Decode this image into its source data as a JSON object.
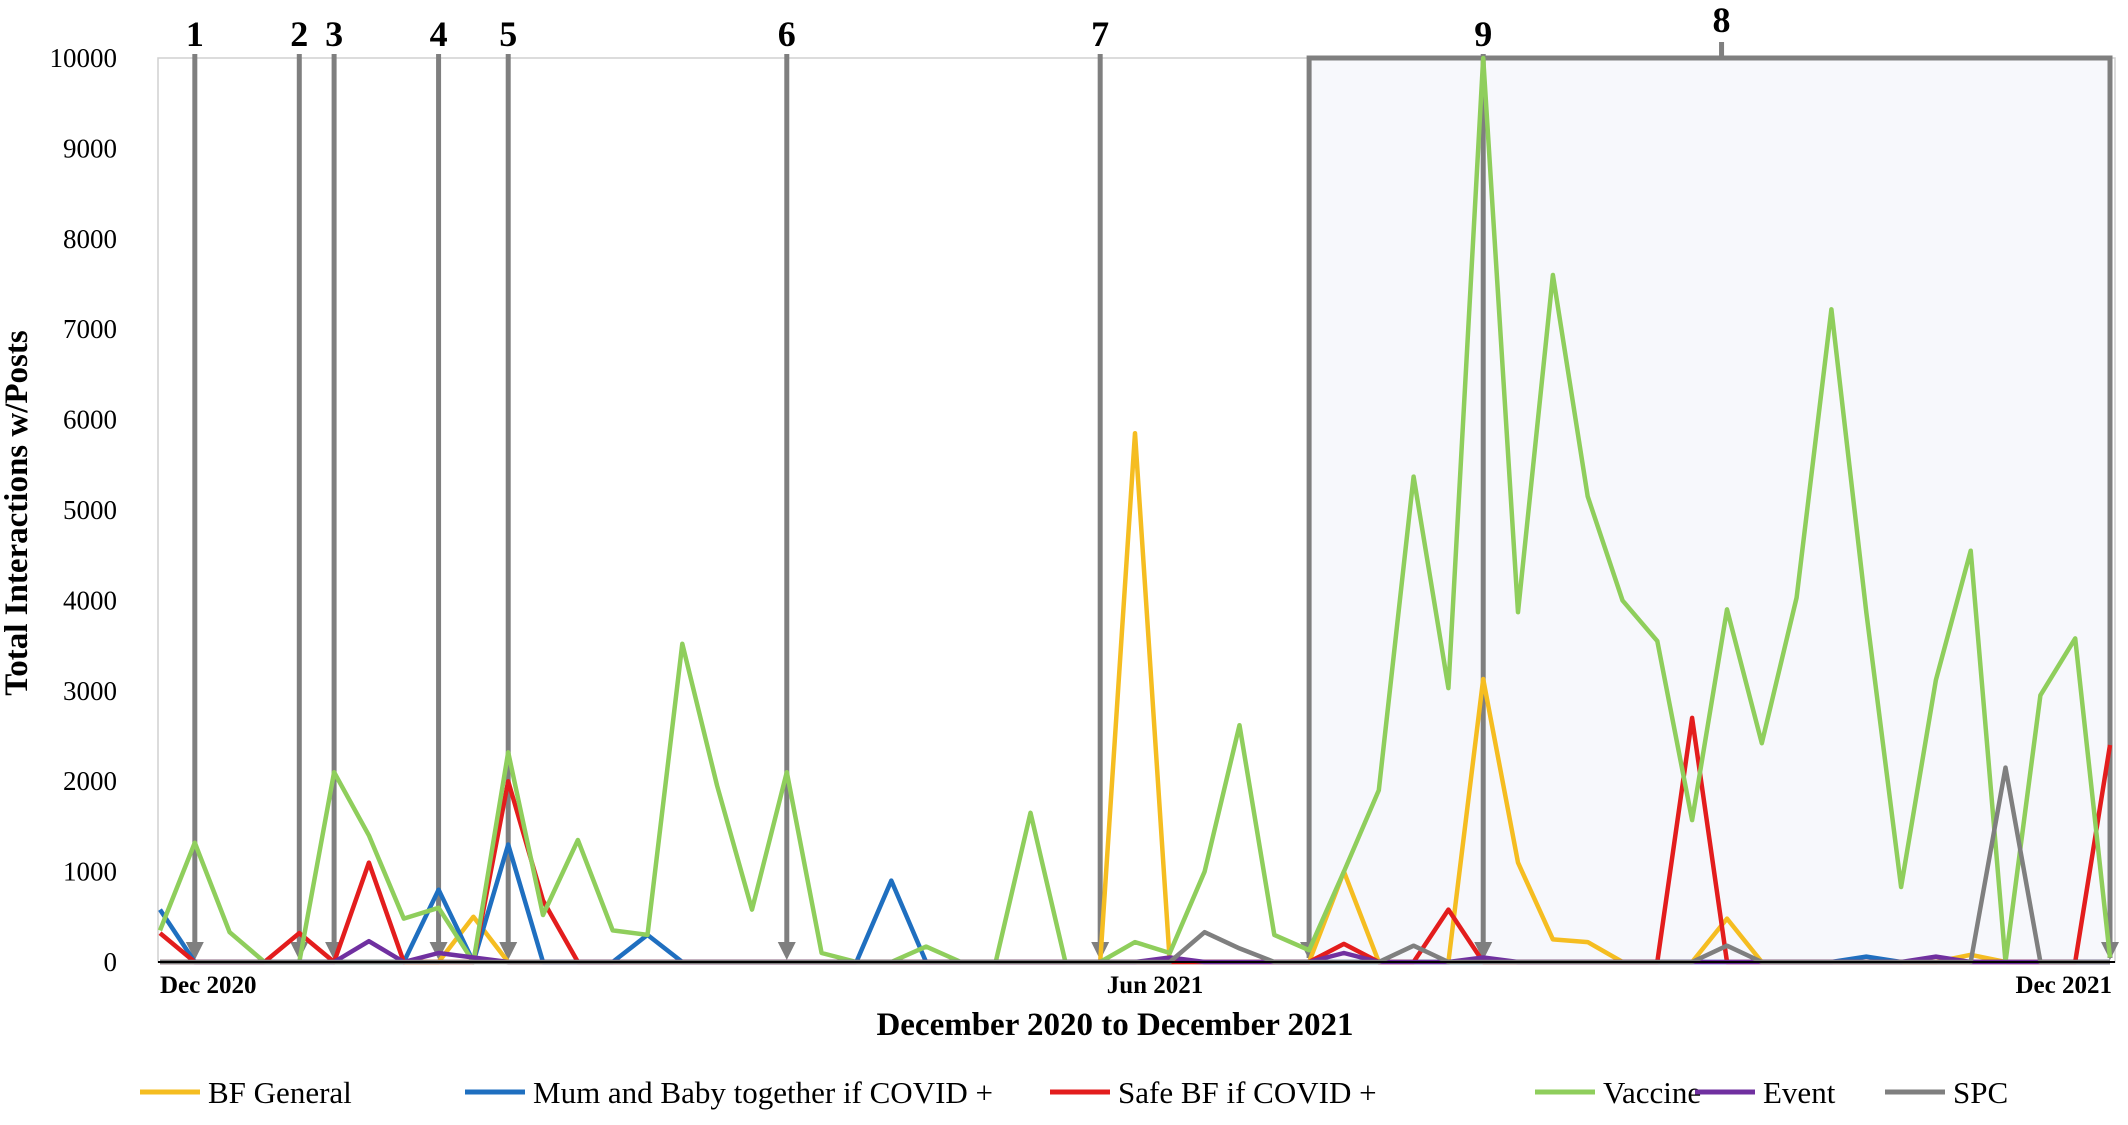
{
  "chart_data": {
    "type": "line",
    "title": "",
    "xlabel": "December 2020 to December 2021",
    "ylabel": "Total Interactions w/Posts",
    "ylim": [
      0,
      10000
    ],
    "yticks": [
      0,
      1000,
      2000,
      3000,
      4000,
      5000,
      6000,
      7000,
      8000,
      9000,
      10000
    ],
    "x_date_labels": [
      {
        "index": 1,
        "label": "Dec 2020"
      },
      {
        "index": 28,
        "label": "Jun 2021"
      },
      {
        "index": 56,
        "label": "Dec 2021"
      }
    ],
    "x_count": 57,
    "grid": false,
    "legend_position": "bottom",
    "series": [
      {
        "name": "BF General",
        "color": "#f5bd21",
        "values": [
          0,
          0,
          0,
          0,
          0,
          0,
          0,
          0,
          0,
          500,
          0,
          0,
          0,
          0,
          0,
          0,
          0,
          0,
          0,
          0,
          0,
          0,
          0,
          0,
          0,
          0,
          0,
          0,
          5850,
          0,
          0,
          0,
          0,
          0,
          1000,
          0,
          0,
          0,
          3130,
          1100,
          250,
          220,
          0,
          0,
          0,
          480,
          0,
          0,
          0,
          0,
          0,
          0,
          80,
          0,
          0,
          0,
          0
        ]
      },
      {
        "name": "Mum and Baby together if COVID +",
        "color": "#1f6fc0",
        "values": [
          580,
          0,
          0,
          0,
          0,
          0,
          0,
          0,
          800,
          0,
          1300,
          0,
          0,
          0,
          300,
          0,
          0,
          0,
          0,
          0,
          0,
          900,
          0,
          0,
          0,
          0,
          0,
          0,
          0,
          0,
          0,
          0,
          0,
          0,
          0,
          0,
          0,
          0,
          0,
          0,
          0,
          0,
          0,
          0,
          0,
          0,
          0,
          0,
          0,
          60,
          0,
          0,
          0,
          0,
          0,
          0,
          0
        ]
      },
      {
        "name": "Safe BF if COVID +",
        "color": "#e31d1d",
        "values": [
          320,
          0,
          0,
          0,
          320,
          0,
          1100,
          0,
          0,
          0,
          2000,
          680,
          0,
          0,
          0,
          0,
          0,
          0,
          0,
          0,
          0,
          0,
          0,
          0,
          0,
          0,
          0,
          0,
          0,
          0,
          0,
          0,
          0,
          0,
          200,
          0,
          0,
          580,
          0,
          0,
          0,
          0,
          0,
          0,
          2700,
          0,
          0,
          0,
          0,
          0,
          0,
          0,
          0,
          0,
          0,
          0,
          2400
        ]
      },
      {
        "name": "Vaccine",
        "color": "#8fce5c",
        "values": [
          350,
          1320,
          330,
          0,
          0,
          2100,
          1400,
          480,
          600,
          0,
          2320,
          520,
          1350,
          350,
          300,
          3520,
          1950,
          580,
          2100,
          100,
          0,
          0,
          170,
          0,
          0,
          1650,
          0,
          0,
          220,
          100,
          1000,
          2620,
          300,
          130,
          1000,
          1900,
          5370,
          3030,
          10000,
          3870,
          7600,
          5150,
          4000,
          3550,
          1570,
          3900,
          2420,
          4030,
          7220,
          3870,
          830,
          3120,
          4550,
          0,
          2950,
          3580,
          50
        ]
      },
      {
        "name": "Event",
        "color": "#7030a0",
        "values": [
          0,
          0,
          0,
          0,
          0,
          0,
          230,
          0,
          100,
          50,
          0,
          0,
          0,
          0,
          0,
          0,
          0,
          0,
          0,
          0,
          0,
          0,
          0,
          0,
          0,
          0,
          0,
          0,
          0,
          50,
          0,
          0,
          0,
          0,
          100,
          0,
          0,
          0,
          50,
          0,
          0,
          0,
          0,
          0,
          0,
          0,
          0,
          0,
          0,
          0,
          0,
          60,
          0,
          0,
          0,
          0,
          0
        ]
      },
      {
        "name": "SPC",
        "color": "#7f7f7f",
        "values": [
          0,
          0,
          0,
          0,
          0,
          0,
          0,
          0,
          0,
          0,
          0,
          0,
          0,
          0,
          0,
          0,
          0,
          0,
          0,
          0,
          0,
          0,
          0,
          0,
          0,
          0,
          0,
          0,
          0,
          0,
          330,
          150,
          0,
          0,
          0,
          0,
          180,
          0,
          0,
          0,
          0,
          0,
          0,
          0,
          0,
          180,
          0,
          0,
          0,
          0,
          0,
          0,
          0,
          2150,
          0,
          0,
          0
        ]
      }
    ],
    "annotations": {
      "arrows": [
        {
          "label": "1",
          "index": 1
        },
        {
          "label": "2",
          "index": 4
        },
        {
          "label": "3",
          "index": 5
        },
        {
          "label": "4",
          "index": 8
        },
        {
          "label": "5",
          "index": 10
        },
        {
          "label": "6",
          "index": 18
        },
        {
          "label": "7",
          "index": 27
        },
        {
          "label": "9",
          "index": 38
        }
      ],
      "bracket": {
        "label": "8",
        "start_index": 33,
        "end_index": 56,
        "fill": "#f7f8fc"
      }
    },
    "colors": {
      "arrow": "#7f7f7f",
      "axis": "#000000",
      "tick_text": "#000000"
    }
  }
}
